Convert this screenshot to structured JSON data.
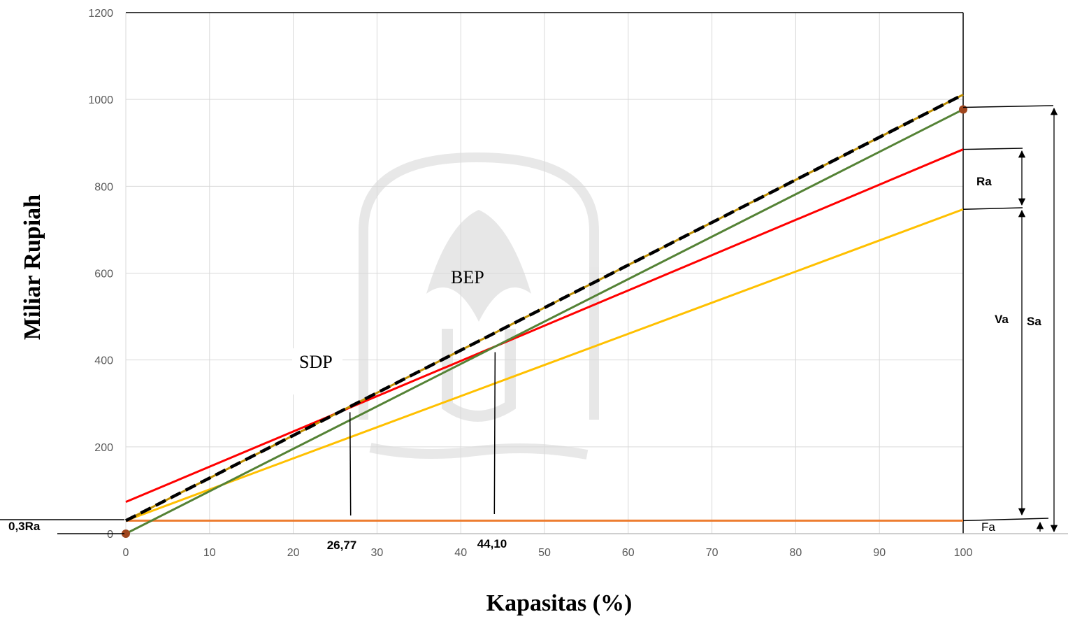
{
  "chart_data": {
    "type": "line",
    "xlabel": "Kapasitas (%)",
    "ylabel": "Miliar Rupiah",
    "xlim": [
      0,
      100
    ],
    "ylim": [
      0,
      1200
    ],
    "x_ticks": [
      "0",
      "10",
      "20",
      "30",
      "40",
      "50",
      "60",
      "70",
      "80",
      "90",
      "100"
    ],
    "y_ticks": [
      "0",
      "200",
      "400",
      "600",
      "800",
      "1000",
      "1200"
    ],
    "grid": true,
    "series": [
      {
        "color": "#ed7d31",
        "x": [
          0,
          100
        ],
        "y": [
          30,
          30
        ]
      },
      {
        "color": "#ffc000",
        "x": [
          0,
          100
        ],
        "y": [
          30,
          747
        ]
      },
      {
        "color": "#ff0000",
        "x": [
          0,
          100
        ],
        "y": [
          73,
          885
        ]
      },
      {
        "color": "#548235",
        "x": [
          0,
          100
        ],
        "y": [
          0,
          977
        ]
      },
      {
        "color": "#bf8f00",
        "x": [
          0,
          100
        ],
        "y": [
          30,
          1011
        ]
      },
      {
        "color": "#000000",
        "dashed": true,
        "x": [
          0,
          100
        ],
        "y": [
          30,
          1011
        ]
      }
    ],
    "points": [
      {
        "x": 0,
        "y": 0,
        "color": "#a0461e"
      },
      {
        "x": 100,
        "y": 977,
        "color": "#a0461e"
      }
    ],
    "annotations": {
      "sdp": {
        "label": "SDP",
        "value": "26,77",
        "x": 26.77
      },
      "bep": {
        "label": "BEP",
        "value": "44,10",
        "x": 44.1
      },
      "fixed_cost_label": "0,3Ra",
      "ra": "Ra",
      "va": "Va",
      "sa": "Sa",
      "fa": "Fa"
    }
  }
}
